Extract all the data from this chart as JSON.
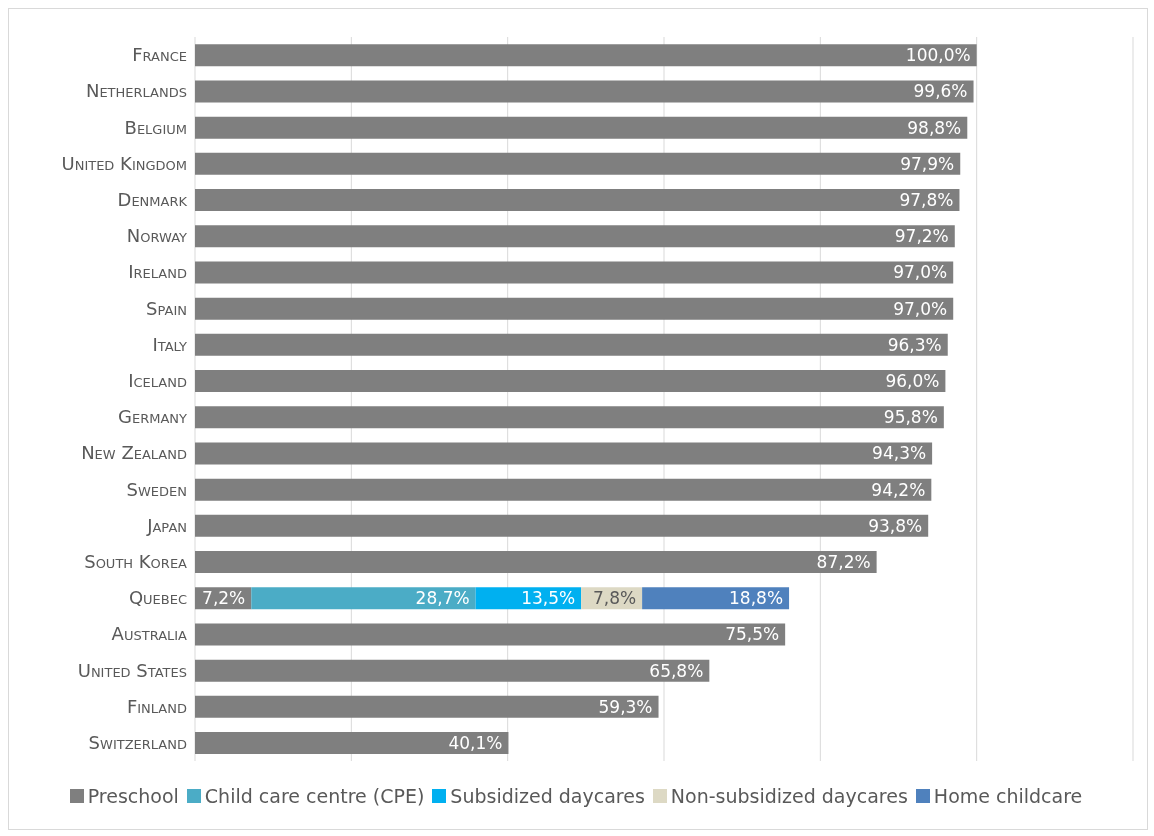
{
  "chart_data": {
    "type": "bar",
    "orientation": "horizontal",
    "stacked": true,
    "categories": [
      "France",
      "Netherlands",
      "Belgium",
      "United Kingdom",
      "Denmark",
      "Norway",
      "Ireland",
      "Spain",
      "Italy",
      "Iceland",
      "Germany",
      "New Zealand",
      "Sweden",
      "Japan",
      "South Korea",
      "Quebec",
      "Australia",
      "United States",
      "Finland",
      "Switzerland"
    ],
    "series": [
      {
        "name": "Preschool",
        "color": "#7f7f7f",
        "values": [
          100,
          99.6,
          98.8,
          97.9,
          97.8,
          97.2,
          97.0,
          97.0,
          96.3,
          96.0,
          95.8,
          94.3,
          94.2,
          93.8,
          87.2,
          7.2,
          75.5,
          65.8,
          59.3,
          40.1
        ],
        "value_labels": [
          "100,0%",
          "99,6%",
          "98,8%",
          "97,9%",
          "97,8%",
          "97,2%",
          "97,0%",
          "97,0%",
          "96,3%",
          "96,0%",
          "95,8%",
          "94,3%",
          "94,2%",
          "93,8%",
          "87,2%",
          "7,2%",
          "75,5%",
          "65,8%",
          "59,3%",
          "40,1%"
        ]
      },
      {
        "name": "Child care centre (CPE)",
        "color": "#4bacc6",
        "values": [
          null,
          null,
          null,
          null,
          null,
          null,
          null,
          null,
          null,
          null,
          null,
          null,
          null,
          null,
          null,
          28.7,
          null,
          null,
          null,
          null
        ],
        "value_labels": [
          null,
          null,
          null,
          null,
          null,
          null,
          null,
          null,
          null,
          null,
          null,
          null,
          null,
          null,
          null,
          "28,7%",
          null,
          null,
          null,
          null
        ]
      },
      {
        "name": "Subsidized daycares",
        "color": "#00b0f0",
        "values": [
          null,
          null,
          null,
          null,
          null,
          null,
          null,
          null,
          null,
          null,
          null,
          null,
          null,
          null,
          null,
          13.5,
          null,
          null,
          null,
          null
        ],
        "value_labels": [
          null,
          null,
          null,
          null,
          null,
          null,
          null,
          null,
          null,
          null,
          null,
          null,
          null,
          null,
          null,
          "13,5%",
          null,
          null,
          null,
          null
        ]
      },
      {
        "name": "Non-subsidized daycares",
        "color": "#ddd9c4",
        "values": [
          null,
          null,
          null,
          null,
          null,
          null,
          null,
          null,
          null,
          null,
          null,
          null,
          null,
          null,
          null,
          7.8,
          null,
          null,
          null,
          null
        ],
        "value_labels": [
          null,
          null,
          null,
          null,
          null,
          null,
          null,
          null,
          null,
          null,
          null,
          null,
          null,
          null,
          null,
          "7,8%",
          null,
          null,
          null,
          null
        ]
      },
      {
        "name": "Home childcare",
        "color": "#4f81bd",
        "values": [
          null,
          null,
          null,
          null,
          null,
          null,
          null,
          null,
          null,
          null,
          null,
          null,
          null,
          null,
          null,
          18.8,
          null,
          null,
          null,
          null
        ],
        "value_labels": [
          null,
          null,
          null,
          null,
          null,
          null,
          null,
          null,
          null,
          null,
          null,
          null,
          null,
          null,
          null,
          "18,8%",
          null,
          null,
          null,
          null
        ]
      }
    ],
    "xlim": [
      0,
      120
    ],
    "xticks": [
      {
        "value": 0,
        "label": null
      },
      {
        "value": 20,
        "label": null
      },
      {
        "value": 40,
        "label": null
      },
      {
        "value": 60,
        "label": null
      },
      {
        "value": 80,
        "label": null
      },
      {
        "value": 100,
        "label": null
      },
      {
        "value": 120,
        "label": null
      }
    ],
    "tick_labels": "y",
    "grid": "x",
    "legend": "bottom"
  }
}
